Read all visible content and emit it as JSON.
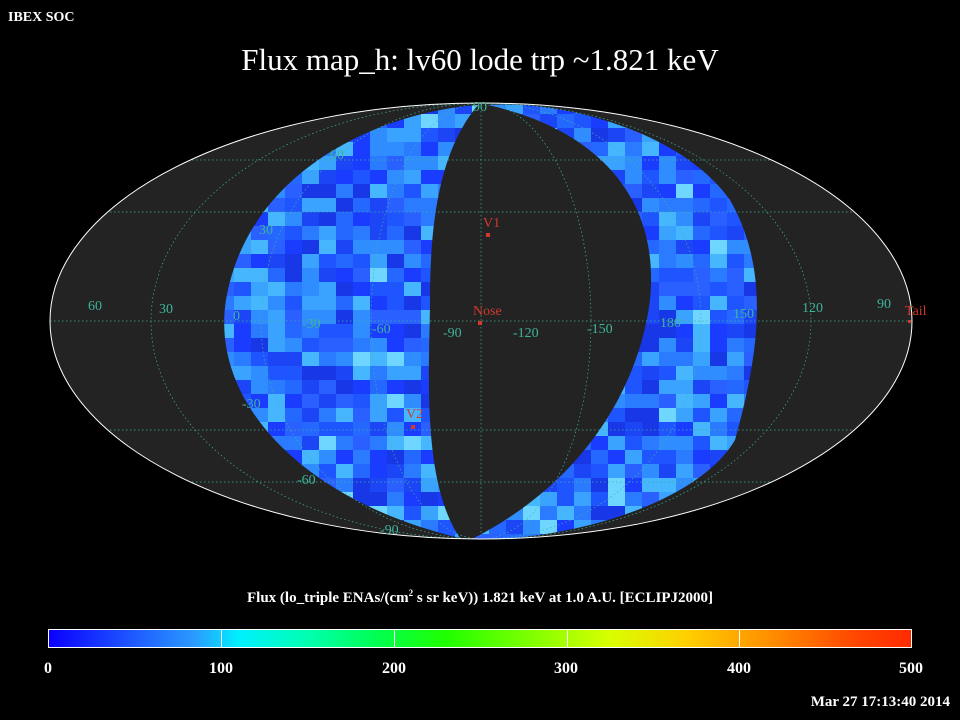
{
  "header": {
    "org": "IBEX SOC",
    "title": "Flux   map_h: lv60 lode trp ~1.821 keV"
  },
  "map": {
    "projection": "Mollweide / Aitoff all-sky",
    "lon_labels": [
      "60",
      "30",
      "0",
      "-30",
      "-60",
      "-90",
      "-120",
      "-150",
      "180",
      "150",
      "120",
      "90"
    ],
    "lat_labels": [
      "90",
      "60",
      "30",
      "-30",
      "-60",
      "-90"
    ],
    "markers": [
      {
        "name": "V1"
      },
      {
        "name": "Nose"
      },
      {
        "name": "V2"
      },
      {
        "name": "Tail"
      }
    ],
    "colors": {
      "background": "#000000",
      "sky_empty": "#232323",
      "grid": "#3fb39a",
      "marker": "#d03a2e",
      "outline": "#ffffff"
    }
  },
  "colorbar": {
    "title_prefix": "Flux (lo_triple ENAs/(cm",
    "title_sup": "2",
    "title_suffix": " s sr keV))  1.821 keV at 1.0 A.U. [ECLIPJ2000]",
    "ticks": [
      "0",
      "100",
      "200",
      "300",
      "400",
      "500"
    ],
    "range": [
      0,
      500
    ]
  },
  "footer": {
    "timestamp": "Mar 27 17:13:40 2014"
  }
}
